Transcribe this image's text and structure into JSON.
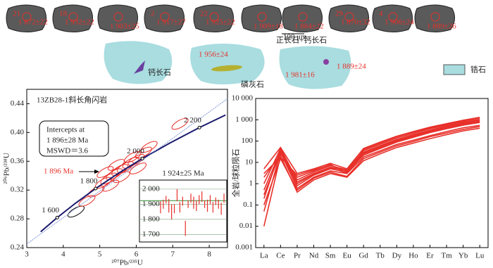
{
  "cl_images": {
    "grains": [
      [
        "21",
        "1 872±22"
      ],
      [
        "18",
        "1 932±22"
      ],
      [
        "1 903±25"
      ],
      [
        "2",
        "1 917±27"
      ],
      [
        "22",
        "1 925±22"
      ],
      [
        "1 909±18"
      ],
      [
        "1 884±22"
      ],
      [
        "29",
        "1 870±32"
      ],
      [
        "4",
        "1 906±24"
      ],
      [
        "1 889±26"
      ]
    ],
    "scale_bar": "100 μm"
  },
  "phase_images": {
    "labels": [
      "钙长石",
      "磷灰石",
      "正长石+钙长石"
    ],
    "ages": [
      "1 956±24",
      "1 981±16",
      "1 889±24"
    ],
    "legend": "锆石",
    "legend_color": "#a9dde0"
  },
  "chart_data": [
    {
      "type": "concordia",
      "title": "13ZB28-1斜长角闪岩",
      "x_label": "²⁰⁷Pb/²³⁵U",
      "y_label": "²⁰⁶Pb/²³⁸U",
      "xlim": [
        3,
        8.5
      ],
      "ylim": [
        0.24,
        0.46
      ],
      "xticks": [
        3,
        4,
        5,
        6,
        7,
        8
      ],
      "yticks": [
        0.24,
        0.28,
        0.32,
        0.36,
        {
          "value": 0.4,
          "label": "0.40"
        },
        0.44
      ],
      "series": [
        {
          "color": "#1a1a6e",
          "x": [
            3.381,
            3.834,
            4.335,
            4.887,
            5.496,
            6.168,
            6.911,
            7.73,
            8.446
          ],
          "y": [
            0.262,
            0.2817,
            0.3017,
            0.3221,
            0.3428,
            0.3638,
            0.3851,
            0.4068,
            0.4243
          ]
        },
        {
          "color": "#6a7fd0",
          "x": [
            3,
            8.5
          ],
          "y": [
            0.245,
            0.447
          ]
        }
      ],
      "age_marks": [
        {
          "label": "1 600",
          "x": 3.834,
          "y": 0.2817
        },
        {
          "label": "1 800",
          "x": 4.887,
          "y": 0.3221
        },
        {
          "label": "2 000",
          "x": 6.168,
          "y": 0.3638
        },
        {
          "label": "2 200",
          "x": 7.73,
          "y": 0.4068
        }
      ],
      "ellipse_color": "#e8302a",
      "ellipses": [
        {
          "x": 4.35,
          "y": 0.29
        },
        {
          "x": 4.65,
          "y": 0.305
        },
        {
          "x": 4.9,
          "y": 0.318
        },
        {
          "x": 5.1,
          "y": 0.33
        },
        {
          "x": 5.25,
          "y": 0.336
        },
        {
          "x": 5.4,
          "y": 0.342
        },
        {
          "x": 5.55,
          "y": 0.348
        },
        {
          "x": 5.7,
          "y": 0.352
        },
        {
          "x": 5.85,
          "y": 0.358
        },
        {
          "x": 6.0,
          "y": 0.362
        },
        {
          "x": 5.3,
          "y": 0.326
        },
        {
          "x": 5.6,
          "y": 0.338
        },
        {
          "x": 5.9,
          "y": 0.366
        },
        {
          "x": 6.2,
          "y": 0.372
        },
        {
          "x": 6.35,
          "y": 0.38
        },
        {
          "x": 5.45,
          "y": 0.355
        },
        {
          "x": 5.15,
          "y": 0.345
        },
        {
          "x": 6.05,
          "y": 0.35
        },
        {
          "x": 7.2,
          "y": 0.412
        }
      ],
      "intercept_lines": [
        "Intercepts at",
        "1 896±28 Ma",
        "MSWD＝3.6"
      ],
      "arrow_label": "1 896 Ma"
    },
    {
      "type": "errorbar",
      "title": "1 924±25 Ma",
      "mean": 1924,
      "color": "#e8302a",
      "ylim": [
        1650,
        2060
      ],
      "yticks": [
        {
          "value": 1700,
          "label": "1 700"
        },
        {
          "value": 1800,
          "label": "1 800"
        },
        {
          "value": 1900,
          "label": "1 900"
        },
        {
          "value": 2000,
          "label": "2 000"
        }
      ],
      "values": [
        1880,
        1900,
        1930,
        1890,
        1850,
        1870,
        1960,
        1880,
        1920,
        1740,
        1900,
        1940,
        1910,
        1890,
        1930,
        1950,
        1900,
        1890,
        1930,
        1880,
        1920,
        1900,
        1870,
        1940
      ],
      "errors": [
        40,
        30,
        25,
        45,
        50,
        30,
        40,
        35,
        30,
        50,
        25,
        30,
        40,
        35,
        30,
        35,
        25,
        40,
        30,
        35,
        25,
        30,
        40,
        30
      ]
    },
    {
      "type": "line",
      "y_label": "全岩/球粒陨石",
      "log_scale": true,
      "categories": [
        "La",
        "Ce",
        "Pr",
        "Nd",
        "Sm",
        "Eu",
        "Gd",
        "Tb",
        "Dy",
        "Ho",
        "Er",
        "Tm",
        "Yb",
        "Lu"
      ],
      "ylim": [
        0.001,
        10000
      ],
      "yticks": [
        0.001,
        0.01,
        0.1,
        1,
        10,
        100,
        {
          "value": 1000,
          "label": "1 000"
        },
        {
          "value": 10000,
          "label": "10 000"
        }
      ],
      "series": [
        {
          "color": "#e8302a",
          "values": [
            0.01,
            20,
            0.4,
            1.5,
            3,
            2,
            12,
            25,
            50,
            80,
            130,
            200,
            300,
            400
          ]
        },
        {
          "color": "#e8302a",
          "values": [
            0.05,
            30,
            0.6,
            2,
            4,
            3,
            18,
            35,
            70,
            110,
            180,
            280,
            420,
            550
          ]
        },
        {
          "color": "#e8302a",
          "values": [
            0.2,
            40,
            0.8,
            2.5,
            5,
            3.5,
            22,
            45,
            90,
            150,
            250,
            380,
            560,
            750
          ]
        },
        {
          "color": "#e8302a",
          "values": [
            0.5,
            35,
            1.2,
            3,
            6,
            4,
            28,
            55,
            110,
            180,
            300,
            450,
            650,
            850
          ]
        },
        {
          "color": "#e8302a",
          "values": [
            1,
            45,
            1.5,
            3.5,
            7,
            4.5,
            35,
            70,
            140,
            230,
            380,
            560,
            800,
            1050
          ]
        },
        {
          "color": "#e8302a",
          "values": [
            2,
            25,
            2,
            4,
            8,
            3,
            40,
            80,
            160,
            260,
            420,
            620,
            900,
            1200
          ]
        },
        {
          "color": "#e8302a",
          "values": [
            5,
            50,
            3,
            5,
            9,
            5,
            45,
            90,
            170,
            280,
            450,
            660,
            950,
            1300
          ]
        },
        {
          "color": "#e8302a",
          "values": [
            0.1,
            15,
            0.5,
            1.8,
            3.5,
            2.2,
            15,
            30,
            60,
            95,
            160,
            240,
            350,
            480
          ]
        },
        {
          "color": "#e8302a",
          "values": [
            0.3,
            28,
            1,
            2.8,
            5.5,
            3.2,
            25,
            50,
            100,
            165,
            270,
            400,
            600,
            780
          ]
        },
        {
          "color": "#e8302a",
          "values": [
            3,
            18,
            2.5,
            4.5,
            7.5,
            3.8,
            30,
            60,
            120,
            200,
            330,
            500,
            720,
            950
          ]
        }
      ]
    }
  ]
}
